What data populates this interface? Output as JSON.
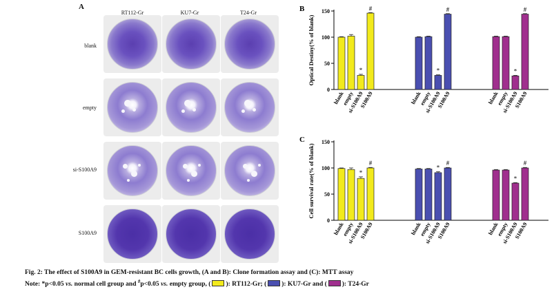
{
  "panel_a": {
    "letter": "A",
    "columns": [
      "RT112-Gr",
      "KU7-Gr",
      "T24-Gr"
    ],
    "rows": [
      "blank",
      "empty",
      "si-S100A9",
      "S100A9"
    ]
  },
  "colors": {
    "RT112-Gr": "#f2ea1c",
    "KU7-Gr": "#4a4fb0",
    "T24-Gr": "#a02f8e"
  },
  "chart_data": [
    {
      "type": "bar",
      "letter": "B",
      "ylabel": "Optical Destiny(% of blank)",
      "ylim": [
        0,
        150
      ],
      "yticks": [
        0,
        50,
        100,
        150
      ],
      "categories": [
        "blank",
        "empty",
        "si-S100A9",
        "S100A9"
      ],
      "series": [
        {
          "name": "RT112-Gr",
          "values": [
            100,
            102,
            27,
            146
          ],
          "errors": [
            1,
            3,
            2,
            1
          ],
          "marks": [
            "",
            "",
            "*",
            "#"
          ]
        },
        {
          "name": "KU7-Gr",
          "values": [
            100,
            101,
            27,
            144
          ],
          "errors": [
            1,
            1,
            1,
            1
          ],
          "marks": [
            "",
            "",
            "*",
            "#"
          ]
        },
        {
          "name": "T24-Gr",
          "values": [
            101,
            101,
            26,
            144
          ],
          "errors": [
            1,
            1,
            1,
            1
          ],
          "marks": [
            "",
            "",
            "*",
            "#"
          ]
        }
      ]
    },
    {
      "type": "bar",
      "letter": "C",
      "ylabel": "Cell survival rate(% of blank)",
      "ylim": [
        0,
        150
      ],
      "yticks": [
        0,
        50,
        100,
        150
      ],
      "categories": [
        "blank",
        "empty",
        "si-S100A9",
        "S100A9"
      ],
      "series": [
        {
          "name": "RT112-Gr",
          "values": [
            99,
            97,
            80,
            100
          ],
          "errors": [
            1,
            3,
            3,
            1
          ],
          "marks": [
            "",
            "",
            "*",
            "#"
          ]
        },
        {
          "name": "KU7-Gr",
          "values": [
            98,
            98,
            91,
            100
          ],
          "errors": [
            1,
            1,
            2,
            1
          ],
          "marks": [
            "",
            "",
            "*",
            "#"
          ]
        },
        {
          "name": "T24-Gr",
          "values": [
            96,
            96,
            71,
            100
          ],
          "errors": [
            1,
            1,
            1,
            1
          ],
          "marks": [
            "",
            "",
            "*",
            "#"
          ]
        }
      ]
    }
  ],
  "caption": {
    "line1": "Fig. 2: The effect of S100A9 in GEM-resistant BC cells growth, (A and B): Clone formation assay and (C): MTT assay",
    "note_prefix": "Note: *p<0.05 ",
    "vs": "vs.",
    "note_mid1": " normal cell group and ",
    "hash": "#",
    "note_mid2": "p<0.05 ",
    "note_mid3": " empty group, (",
    "legend": [
      {
        "label": "): RT112-Gr; ("
      },
      {
        "label": "): KU7-Gr and ("
      },
      {
        "label": "): T24-Gr"
      }
    ]
  }
}
